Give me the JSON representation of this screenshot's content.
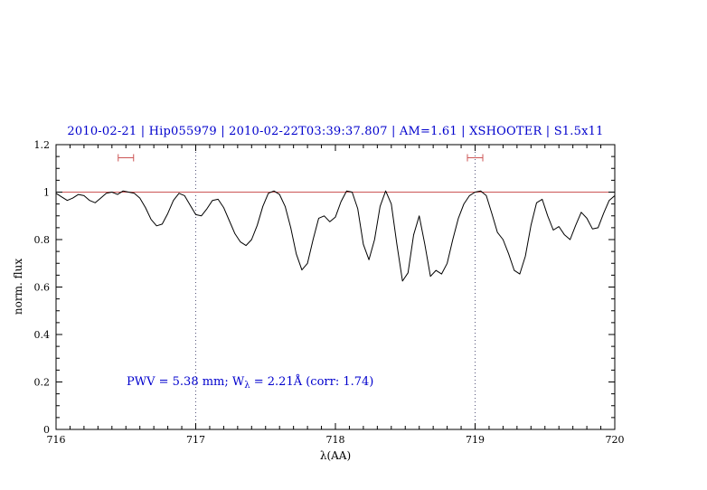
{
  "title": "2010-02-21 | Hip055979 | 2010-02-22T03:39:37.807 | AM=1.61 | XSHOOTER | S1.5x11",
  "annotation": {
    "pre": "PWV = 5.38 mm; W",
    "sub": "λ",
    "post": " = 2.21Å (corr: 1.74)"
  },
  "colors": {
    "title_text": "#0000cd",
    "annotation_text": "#0000cd",
    "reference_red": "#cc5555",
    "dotted_line": "#55557a",
    "spectrum": "#000000"
  },
  "chart_data": {
    "type": "line",
    "title": "2010-02-21 | Hip055979 | 2010-02-22T03:39:37.807 | AM=1.61 | XSHOOTER | S1.5x11",
    "xlabel": "λ(AA)",
    "ylabel": "norm. flux",
    "xlim": [
      716,
      720
    ],
    "ylim": [
      0,
      1.2
    ],
    "xticks": [
      716,
      717,
      718,
      719,
      720
    ],
    "xtick_labels": [
      "716",
      "717",
      "718",
      "719",
      "720"
    ],
    "yticks": [
      0,
      0.2,
      0.4,
      0.6,
      0.8,
      1,
      1.2
    ],
    "ytick_labels": [
      "0",
      "0.2",
      "0.4",
      "0.6",
      "0.8",
      "1",
      "1.2"
    ],
    "grid": "off",
    "legend": "none",
    "annotation": "PWV = 5.38 mm; Wλ = 2.21Å (corr: 1.74)",
    "reference": {
      "hline": 1.0,
      "vlines": [
        717,
        719
      ]
    },
    "markers": [
      {
        "type": "horizontal-range-errorbar",
        "x_center": 716.5,
        "half_width": 0.055,
        "y": 1.145,
        "color": "#cc5555"
      },
      {
        "type": "horizontal-range-errorbar",
        "x_center": 719.0,
        "half_width": 0.055,
        "y": 1.145,
        "color": "#cc5555"
      }
    ],
    "series": [
      {
        "name": "normalized telluric spectrum",
        "color": "#000000",
        "points": [
          [
            716.0,
            0.995
          ],
          [
            716.04,
            0.98
          ],
          [
            716.08,
            0.965
          ],
          [
            716.12,
            0.975
          ],
          [
            716.16,
            0.99
          ],
          [
            716.2,
            0.985
          ],
          [
            716.24,
            0.965
          ],
          [
            716.28,
            0.955
          ],
          [
            716.32,
            0.975
          ],
          [
            716.36,
            0.995
          ],
          [
            716.4,
            1.0
          ],
          [
            716.44,
            0.99
          ],
          [
            716.48,
            1.005
          ],
          [
            716.52,
            1.0
          ],
          [
            716.56,
            0.995
          ],
          [
            716.6,
            0.975
          ],
          [
            716.64,
            0.935
          ],
          [
            716.68,
            0.885
          ],
          [
            716.72,
            0.858
          ],
          [
            716.76,
            0.865
          ],
          [
            716.8,
            0.91
          ],
          [
            716.84,
            0.965
          ],
          [
            716.88,
            0.995
          ],
          [
            716.92,
            0.985
          ],
          [
            716.96,
            0.945
          ],
          [
            717.0,
            0.905
          ],
          [
            717.04,
            0.9
          ],
          [
            717.08,
            0.93
          ],
          [
            717.12,
            0.965
          ],
          [
            717.16,
            0.97
          ],
          [
            717.2,
            0.935
          ],
          [
            717.24,
            0.88
          ],
          [
            717.28,
            0.825
          ],
          [
            717.32,
            0.79
          ],
          [
            717.36,
            0.775
          ],
          [
            717.4,
            0.8
          ],
          [
            717.44,
            0.86
          ],
          [
            717.48,
            0.94
          ],
          [
            717.52,
            0.995
          ],
          [
            717.56,
            1.005
          ],
          [
            717.6,
            0.99
          ],
          [
            717.64,
            0.94
          ],
          [
            717.68,
            0.85
          ],
          [
            717.72,
            0.74
          ],
          [
            717.76,
            0.672
          ],
          [
            717.8,
            0.7
          ],
          [
            717.84,
            0.8
          ],
          [
            717.88,
            0.89
          ],
          [
            717.92,
            0.9
          ],
          [
            717.96,
            0.875
          ],
          [
            718.0,
            0.895
          ],
          [
            718.04,
            0.96
          ],
          [
            718.08,
            1.005
          ],
          [
            718.12,
            1.0
          ],
          [
            718.16,
            0.93
          ],
          [
            718.2,
            0.78
          ],
          [
            718.24,
            0.715
          ],
          [
            718.28,
            0.8
          ],
          [
            718.32,
            0.94
          ],
          [
            718.36,
            1.005
          ],
          [
            718.4,
            0.95
          ],
          [
            718.44,
            0.78
          ],
          [
            718.48,
            0.625
          ],
          [
            718.52,
            0.66
          ],
          [
            718.56,
            0.82
          ],
          [
            718.6,
            0.9
          ],
          [
            718.64,
            0.78
          ],
          [
            718.68,
            0.645
          ],
          [
            718.72,
            0.67
          ],
          [
            718.76,
            0.655
          ],
          [
            718.8,
            0.7
          ],
          [
            718.84,
            0.8
          ],
          [
            718.88,
            0.89
          ],
          [
            718.92,
            0.95
          ],
          [
            718.96,
            0.985
          ],
          [
            719.0,
            1.0
          ],
          [
            719.04,
            1.005
          ],
          [
            719.08,
            0.985
          ],
          [
            719.12,
            0.91
          ],
          [
            719.16,
            0.83
          ],
          [
            719.2,
            0.8
          ],
          [
            719.24,
            0.74
          ],
          [
            719.28,
            0.67
          ],
          [
            719.32,
            0.655
          ],
          [
            719.36,
            0.73
          ],
          [
            719.4,
            0.86
          ],
          [
            719.44,
            0.955
          ],
          [
            719.48,
            0.97
          ],
          [
            719.52,
            0.9
          ],
          [
            719.56,
            0.84
          ],
          [
            719.6,
            0.855
          ],
          [
            719.64,
            0.82
          ],
          [
            719.68,
            0.8
          ],
          [
            719.72,
            0.86
          ],
          [
            719.76,
            0.915
          ],
          [
            719.8,
            0.89
          ],
          [
            719.84,
            0.845
          ],
          [
            719.88,
            0.85
          ],
          [
            719.92,
            0.91
          ],
          [
            719.96,
            0.965
          ],
          [
            720.0,
            0.985
          ]
        ]
      }
    ]
  }
}
